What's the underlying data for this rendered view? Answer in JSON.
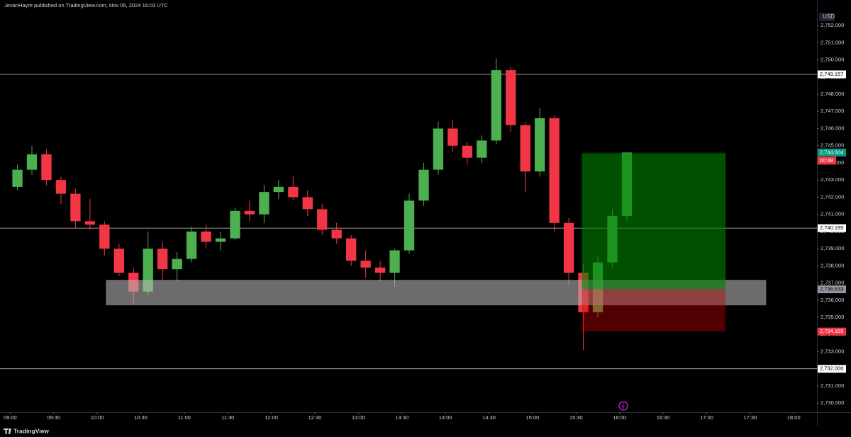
{
  "header": {
    "publisher": "JevanHayre published on TradingView.com, Nov 05, 2024 16:03 UTC"
  },
  "footer": {
    "brand": "TradingView"
  },
  "chart_data": {
    "type": "candlestick",
    "currency": "USD",
    "x": [
      "09:00",
      "09:10",
      "09:20",
      "09:30",
      "09:40",
      "09:50",
      "10:00",
      "10:10",
      "10:20",
      "10:30",
      "10:40",
      "10:50",
      "11:00",
      "11:10",
      "11:20",
      "11:30",
      "11:40",
      "11:50",
      "12:00",
      "12:10",
      "12:20",
      "12:30",
      "12:40",
      "12:50",
      "13:00",
      "13:10",
      "13:20",
      "13:30",
      "13:40",
      "13:50",
      "14:00",
      "14:10",
      "14:20",
      "14:30",
      "14:40",
      "14:50",
      "15:00",
      "15:10",
      "15:20",
      "15:30",
      "15:40",
      "15:50",
      "16:00"
    ],
    "open": [
      2742.6,
      2743.6,
      2744.5,
      2743.0,
      2742.2,
      2740.6,
      2740.4,
      2739.0,
      2737.6,
      2736.5,
      2739.0,
      2737.8,
      2738.4,
      2740.0,
      2739.4,
      2739.6,
      2741.2,
      2741.0,
      2742.3,
      2742.6,
      2742.0,
      2741.3,
      2740.1,
      2739.6,
      2738.3,
      2737.9,
      2737.6,
      2738.9,
      2741.8,
      2743.6,
      2746.0,
      2745.0,
      2744.3,
      2745.3,
      2749.4,
      2746.2,
      2743.5,
      2746.6,
      2740.5,
      2737.6,
      2735.3,
      2738.2,
      2740.9
    ],
    "high": [
      2743.9,
      2745.0,
      2744.8,
      2743.2,
      2742.5,
      2741.9,
      2740.6,
      2739.3,
      2737.9,
      2740.0,
      2739.4,
      2738.8,
      2740.3,
      2740.4,
      2740.0,
      2741.4,
      2741.8,
      2742.7,
      2743.0,
      2743.2,
      2742.4,
      2741.6,
      2740.5,
      2739.8,
      2738.9,
      2738.3,
      2739.0,
      2742.2,
      2744.0,
      2746.4,
      2746.5,
      2745.2,
      2745.6,
      2750.1,
      2749.6,
      2746.4,
      2747.2,
      2746.8,
      2740.8,
      2738.1,
      2738.6,
      2741.3,
      2744.6
    ],
    "low": [
      2742.4,
      2743.3,
      2742.7,
      2741.6,
      2740.2,
      2740.1,
      2738.6,
      2737.4,
      2735.7,
      2736.3,
      2737.2,
      2737.1,
      2738.2,
      2739.0,
      2738.9,
      2739.5,
      2740.6,
      2740.5,
      2741.9,
      2741.8,
      2740.9,
      2739.8,
      2739.3,
      2738.0,
      2737.3,
      2737.1,
      2736.8,
      2738.7,
      2741.5,
      2743.3,
      2744.6,
      2743.9,
      2744.0,
      2745.1,
      2745.8,
      2742.3,
      2743.2,
      2740.0,
      2736.9,
      2733.1,
      2735.0,
      2737.9,
      2740.6
    ],
    "close": [
      2743.6,
      2744.5,
      2743.0,
      2742.2,
      2740.6,
      2740.4,
      2739.0,
      2737.6,
      2736.5,
      2739.0,
      2737.8,
      2738.4,
      2740.0,
      2739.4,
      2739.6,
      2741.2,
      2741.0,
      2742.3,
      2742.6,
      2742.0,
      2741.3,
      2740.1,
      2739.6,
      2738.3,
      2737.9,
      2737.6,
      2738.9,
      2741.8,
      2743.6,
      2746.0,
      2745.0,
      2744.3,
      2745.3,
      2749.4,
      2746.2,
      2743.5,
      2746.6,
      2740.5,
      2737.6,
      2735.3,
      2738.2,
      2740.9,
      2744.604
    ],
    "last_price_label": "2,744.604",
    "countdown": "00:38",
    "up_color": "#4caf50",
    "down_color": "#f23645",
    "xlim": [
      "08:53",
      "18:16"
    ],
    "xticks": [
      "09:00",
      "09:30",
      "10:00",
      "10:30",
      "11:00",
      "11:30",
      "12:00",
      "12:30",
      "13:00",
      "13:30",
      "14:00",
      "14:30",
      "15:00",
      "15:30",
      "16:00",
      "16:30",
      "17:00",
      "17:30",
      "18:00"
    ],
    "ylim": [
      2729.47,
      2753.49
    ],
    "yticks": [
      {
        "value": 2730,
        "label": "2,730.000"
      },
      {
        "value": 2731,
        "label": "2,731.000"
      },
      {
        "value": 2732,
        "label": "2,732.000"
      },
      {
        "value": 2733,
        "label": "2,733.000"
      },
      {
        "value": 2734,
        "label": "2,734.000"
      },
      {
        "value": 2735,
        "label": "2,735.000"
      },
      {
        "value": 2736,
        "label": "2,736.000"
      },
      {
        "value": 2737,
        "label": "2,737.000"
      },
      {
        "value": 2738,
        "label": "2,738.000"
      },
      {
        "value": 2739,
        "label": "2,739.000"
      },
      {
        "value": 2740,
        "label": "2,740.000"
      },
      {
        "value": 2741,
        "label": "2,741.000"
      },
      {
        "value": 2742,
        "label": "2,742.000"
      },
      {
        "value": 2743,
        "label": "2,743.000"
      },
      {
        "value": 2744,
        "label": "2,744.000"
      },
      {
        "value": 2745,
        "label": "2,745.000"
      },
      {
        "value": 2746,
        "label": "2,746.000"
      },
      {
        "value": 2747,
        "label": "2,747.000"
      },
      {
        "value": 2748,
        "label": "2,748.000"
      },
      {
        "value": 2749,
        "label": "2,749.000"
      },
      {
        "value": 2750,
        "label": "2,750.000"
      },
      {
        "value": 2751,
        "label": "2,751.000"
      },
      {
        "value": 2752,
        "label": "2,752.000"
      }
    ],
    "lines": [
      {
        "value": 2749.157,
        "label": "2,749.157"
      },
      {
        "value": 2740.195,
        "label": "2,740.195"
      },
      {
        "value": 2732,
        "label": "2,732.000"
      }
    ],
    "zone": {
      "x": [
        "10:06",
        "17:41"
      ],
      "y": [
        2735.7,
        2737.18
      ],
      "color": "#b4b4b4"
    },
    "position": {
      "x": [
        "15:34",
        "17:13"
      ],
      "entry": {
        "value": 2736.633,
        "label": "2,736.633"
      },
      "stop": {
        "value": 2734.169,
        "label": "2,734.169"
      },
      "target": 2744.55
    }
  }
}
